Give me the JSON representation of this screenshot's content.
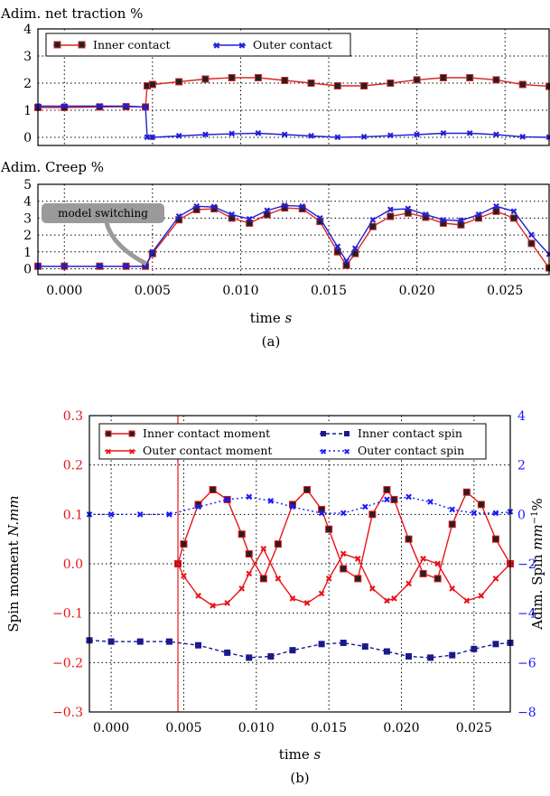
{
  "chart_data": [
    {
      "type": "line",
      "title": "Adim. net traction %",
      "xlim": [
        -0.0015,
        0.0275
      ],
      "ylim": [
        -0.3,
        4.0
      ],
      "yticks": [
        0,
        1,
        2,
        3,
        4
      ],
      "grid": true,
      "legend_position": "top",
      "legend_columns": 2,
      "series": [
        {
          "name": "Inner contact",
          "color": "#d62728",
          "marker": "square",
          "x": [
            -0.0015,
            0.0,
            0.002,
            0.0035,
            0.0046,
            0.0047,
            0.005,
            0.0065,
            0.008,
            0.0095,
            0.011,
            0.0125,
            0.014,
            0.0155,
            0.017,
            0.0185,
            0.02,
            0.0215,
            0.023,
            0.0245,
            0.026,
            0.0275
          ],
          "y": [
            1.1,
            1.1,
            1.12,
            1.13,
            1.12,
            1.9,
            1.95,
            2.05,
            2.15,
            2.2,
            2.2,
            2.1,
            2.0,
            1.9,
            1.9,
            2.0,
            2.12,
            2.2,
            2.2,
            2.12,
            1.95,
            1.88
          ]
        },
        {
          "name": "Outer contact",
          "color": "#1f1fd6",
          "marker": "x",
          "x": [
            -0.0015,
            0.0,
            0.002,
            0.0035,
            0.0046,
            0.0047,
            0.005,
            0.0065,
            0.008,
            0.0095,
            0.011,
            0.0125,
            0.014,
            0.0155,
            0.017,
            0.0185,
            0.02,
            0.0215,
            0.023,
            0.0245,
            0.026,
            0.0275
          ],
          "y": [
            1.15,
            1.15,
            1.15,
            1.15,
            1.12,
            0.0,
            0.0,
            0.05,
            0.1,
            0.13,
            0.15,
            0.1,
            0.05,
            0.0,
            0.02,
            0.06,
            0.1,
            0.15,
            0.15,
            0.1,
            0.02,
            0.0
          ]
        }
      ]
    },
    {
      "type": "line",
      "title": "Adim. Creep %",
      "xlim": [
        -0.0015,
        0.0275
      ],
      "ylim": [
        -0.35,
        5.0
      ],
      "yticks": [
        0,
        1,
        2,
        3,
        4,
        5
      ],
      "xticks": [
        0.0,
        0.005,
        0.01,
        0.015,
        0.02,
        0.025
      ],
      "xtick_labels": [
        "0.000",
        "0.005",
        "0.010",
        "0.015",
        "0.020",
        "0.025"
      ],
      "xlabel": "time s",
      "annotation": "model switching",
      "caption": "(a)",
      "grid": true,
      "series": [
        {
          "name": "Inner contact",
          "color": "#d62728",
          "marker": "square",
          "x": [
            -0.0015,
            0.0,
            0.002,
            0.0035,
            0.0046,
            0.005,
            0.0065,
            0.0075,
            0.0085,
            0.0095,
            0.0105,
            0.0115,
            0.0125,
            0.0135,
            0.0145,
            0.0155,
            0.016,
            0.0165,
            0.0175,
            0.0185,
            0.0195,
            0.0205,
            0.0215,
            0.0225,
            0.0235,
            0.0245,
            0.0255,
            0.0265,
            0.0275
          ],
          "y": [
            0.15,
            0.15,
            0.15,
            0.15,
            0.15,
            0.9,
            2.9,
            3.5,
            3.55,
            3.0,
            2.7,
            3.2,
            3.6,
            3.55,
            2.8,
            1.0,
            0.2,
            0.9,
            2.5,
            3.1,
            3.3,
            3.05,
            2.7,
            2.6,
            3.0,
            3.4,
            3.0,
            1.5,
            0.05
          ]
        },
        {
          "name": "Outer contact",
          "color": "#1f1fd6",
          "marker": "x",
          "x": [
            -0.0015,
            0.0,
            0.002,
            0.0035,
            0.0046,
            0.005,
            0.0065,
            0.0075,
            0.0085,
            0.0095,
            0.0105,
            0.0115,
            0.0125,
            0.0135,
            0.0145,
            0.0155,
            0.016,
            0.0165,
            0.0175,
            0.0185,
            0.0195,
            0.0205,
            0.0215,
            0.0225,
            0.0235,
            0.0245,
            0.0255,
            0.0265,
            0.0275
          ],
          "y": [
            0.15,
            0.15,
            0.15,
            0.15,
            0.15,
            1.0,
            3.1,
            3.7,
            3.65,
            3.2,
            2.95,
            3.45,
            3.75,
            3.7,
            3.0,
            1.3,
            0.45,
            1.2,
            2.9,
            3.5,
            3.55,
            3.2,
            2.9,
            2.85,
            3.2,
            3.7,
            3.4,
            2.0,
            0.85
          ]
        }
      ]
    },
    {
      "type": "line",
      "xlim": [
        -0.0015,
        0.0275
      ],
      "ylim": [
        -0.3,
        0.3
      ],
      "yticks": [
        -0.3,
        -0.2,
        -0.1,
        0.0,
        0.1,
        0.2,
        0.3
      ],
      "ytick_labels": [
        "−0.3",
        "−0.2",
        "−0.1",
        "0.0",
        "0.1",
        "0.2",
        "0.3"
      ],
      "y2lim": [
        -8,
        4
      ],
      "y2ticks": [
        -8,
        -6,
        -4,
        -2,
        0,
        2,
        4
      ],
      "y2tick_labels": [
        "−8",
        "−6",
        "−4",
        "−2",
        "0",
        "2",
        "4"
      ],
      "xticks": [
        0.0,
        0.005,
        0.01,
        0.015,
        0.02,
        0.025
      ],
      "xtick_labels": [
        "0.000",
        "0.005",
        "0.010",
        "0.015",
        "0.020",
        "0.025"
      ],
      "xlabel": "time s",
      "ylabel": "Spin moment N.mm",
      "y2label": "Adim. Spin mm⁻¹%",
      "switch_time": 0.0046,
      "caption": "(b)",
      "grid": true,
      "legend_position": "top",
      "legend_columns": 2,
      "series": [
        {
          "name": "Inner contact moment",
          "axis": "left",
          "color": "#e8141a",
          "marker": "square",
          "x": [
            0.0046,
            0.005,
            0.006,
            0.007,
            0.008,
            0.009,
            0.0095,
            0.0105,
            0.0115,
            0.0125,
            0.0135,
            0.0145,
            0.015,
            0.016,
            0.017,
            0.018,
            0.019,
            0.0195,
            0.0205,
            0.0215,
            0.0225,
            0.0235,
            0.0245,
            0.0255,
            0.0265,
            0.0275
          ],
          "y": [
            0.0,
            0.04,
            0.12,
            0.15,
            0.13,
            0.06,
            0.02,
            -0.03,
            0.04,
            0.12,
            0.15,
            0.11,
            0.07,
            -0.01,
            -0.03,
            0.1,
            0.15,
            0.13,
            0.05,
            -0.02,
            -0.03,
            0.08,
            0.145,
            0.12,
            0.05,
            0.0
          ]
        },
        {
          "name": "Outer contact moment",
          "axis": "left",
          "color": "#e8141a",
          "marker": "x",
          "x": [
            0.0046,
            0.005,
            0.006,
            0.007,
            0.008,
            0.009,
            0.0095,
            0.0105,
            0.0115,
            0.0125,
            0.0135,
            0.0145,
            0.015,
            0.016,
            0.017,
            0.018,
            0.019,
            0.0195,
            0.0205,
            0.0215,
            0.0225,
            0.0235,
            0.0245,
            0.0255,
            0.0265,
            0.0275
          ],
          "y": [
            0.0,
            -0.025,
            -0.065,
            -0.085,
            -0.08,
            -0.05,
            -0.02,
            0.03,
            -0.03,
            -0.07,
            -0.08,
            -0.06,
            -0.03,
            0.02,
            0.01,
            -0.05,
            -0.075,
            -0.07,
            -0.04,
            0.01,
            0.0,
            -0.05,
            -0.075,
            -0.065,
            -0.03,
            0.0
          ]
        },
        {
          "name": "Inner contact spin",
          "axis": "right",
          "color": "#1a1a8c",
          "marker": "square",
          "x": [
            -0.0015,
            0.0,
            0.002,
            0.004,
            0.006,
            0.008,
            0.0095,
            0.011,
            0.0125,
            0.0145,
            0.016,
            0.0175,
            0.019,
            0.0205,
            0.022,
            0.0235,
            0.025,
            0.0265,
            0.0275
          ],
          "y": [
            -5.1,
            -5.15,
            -5.15,
            -5.15,
            -5.3,
            -5.6,
            -5.8,
            -5.75,
            -5.5,
            -5.25,
            -5.2,
            -5.35,
            -5.55,
            -5.75,
            -5.8,
            -5.7,
            -5.45,
            -5.25,
            -5.2
          ]
        },
        {
          "name": "Outer contact spin",
          "axis": "right",
          "color": "#1a1aff",
          "marker": "x",
          "x": [
            -0.0015,
            0.0,
            0.002,
            0.004,
            0.006,
            0.008,
            0.0095,
            0.011,
            0.0125,
            0.0145,
            0.016,
            0.0175,
            0.019,
            0.0205,
            0.022,
            0.0235,
            0.025,
            0.0265,
            0.0275
          ],
          "y": [
            0.0,
            0.0,
            0.0,
            0.0,
            0.3,
            0.6,
            0.7,
            0.55,
            0.3,
            0.05,
            0.05,
            0.3,
            0.6,
            0.7,
            0.5,
            0.2,
            0.05,
            0.05,
            0.1
          ]
        }
      ]
    }
  ]
}
